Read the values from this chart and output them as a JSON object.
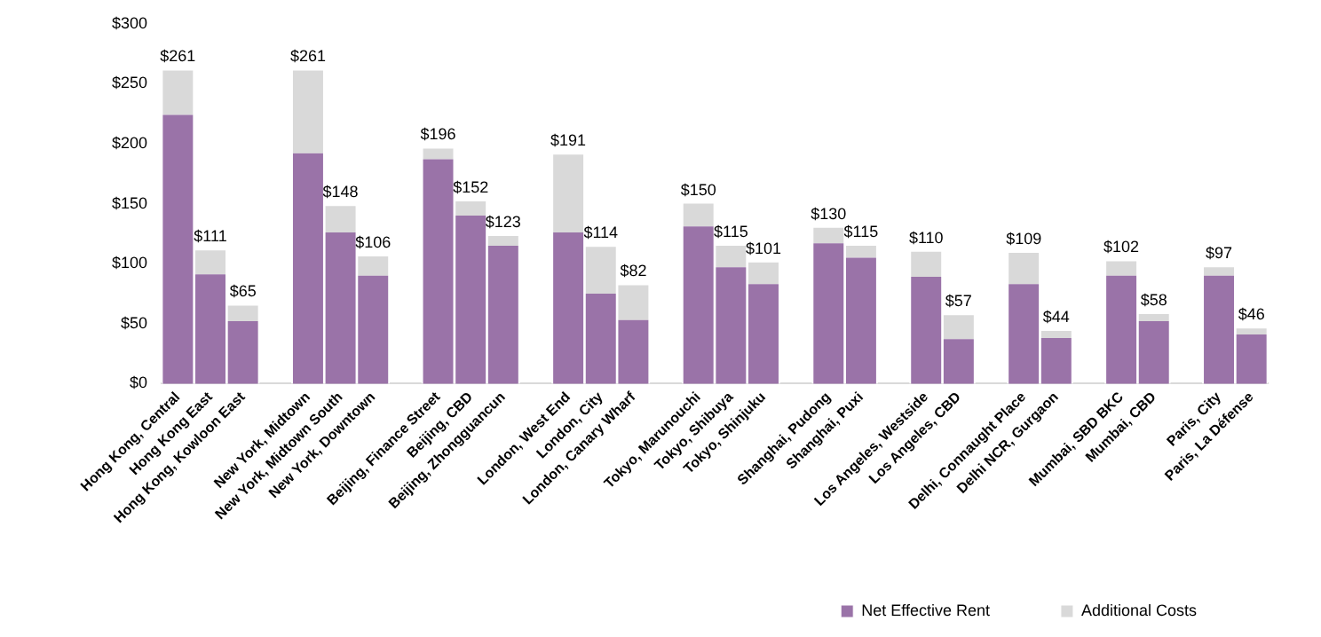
{
  "chart_data": {
    "type": "bar",
    "stacked": true,
    "categories": [
      "Hong Kong, Central",
      "Hong Kong East",
      "Hong Kong, Kowloon East",
      null,
      "New York, Midtown",
      "New York, Midtown South",
      "New York, Downtown",
      null,
      "Beijing, Finance Street",
      "Beijing, CBD",
      "Beijing, Zhongguancun",
      null,
      "London, West End",
      "London, City",
      "London, Canary Wharf",
      null,
      "Tokyo, Marunouchi",
      "Tokyo, Shibuya",
      "Tokyo, Shinjuku",
      null,
      "Shanghai, Pudong",
      "Shanghai, Puxi",
      null,
      "Los Angeles, Westside",
      "Los Angeles, CBD",
      null,
      "Delhi, Connaught Place",
      "Delhi NCR, Gurgaon",
      null,
      "Mumbai, SBD BKC",
      "Mumbai, CBD",
      null,
      "Paris, City",
      "Paris, La Défense"
    ],
    "series": [
      {
        "name": "Net Effective Rent",
        "color": "#9a73a8",
        "values": [
          224,
          91,
          52,
          null,
          192,
          126,
          90,
          null,
          187,
          140,
          115,
          null,
          126,
          75,
          53,
          null,
          131,
          97,
          83,
          null,
          117,
          105,
          null,
          89,
          37,
          null,
          83,
          38,
          null,
          90,
          52,
          null,
          90,
          41
        ]
      },
      {
        "name": "Additional Costs",
        "color": "#d9d9d9",
        "values": [
          37,
          20,
          13,
          null,
          69,
          22,
          16,
          null,
          9,
          12,
          8,
          null,
          65,
          39,
          29,
          null,
          19,
          18,
          18,
          null,
          13,
          10,
          null,
          21,
          20,
          null,
          26,
          6,
          null,
          12,
          6,
          null,
          7,
          5
        ]
      }
    ],
    "totals": [
      "$261",
      "$111",
      "$65",
      null,
      "$261",
      "$148",
      "$106",
      null,
      "$196",
      "$152",
      "$123",
      null,
      "$191",
      "$114",
      "$82",
      null,
      "$150",
      "$115",
      "$101",
      null,
      "$130",
      "$115",
      null,
      "$110",
      "$57",
      null,
      "$109",
      "$44",
      null,
      "$102",
      "$58",
      null,
      "$97",
      "$46"
    ],
    "ylim": [
      0,
      300
    ],
    "yticks": [
      {
        "value": 0,
        "label": "$0"
      },
      {
        "value": 50,
        "label": "$50"
      },
      {
        "value": 100,
        "label": "$100"
      },
      {
        "value": 150,
        "label": "$150"
      },
      {
        "value": 200,
        "label": "$200"
      },
      {
        "value": 250,
        "label": "$250"
      },
      {
        "value": 300,
        "label": "$300"
      }
    ],
    "grid": false,
    "legend": "bottom right"
  }
}
